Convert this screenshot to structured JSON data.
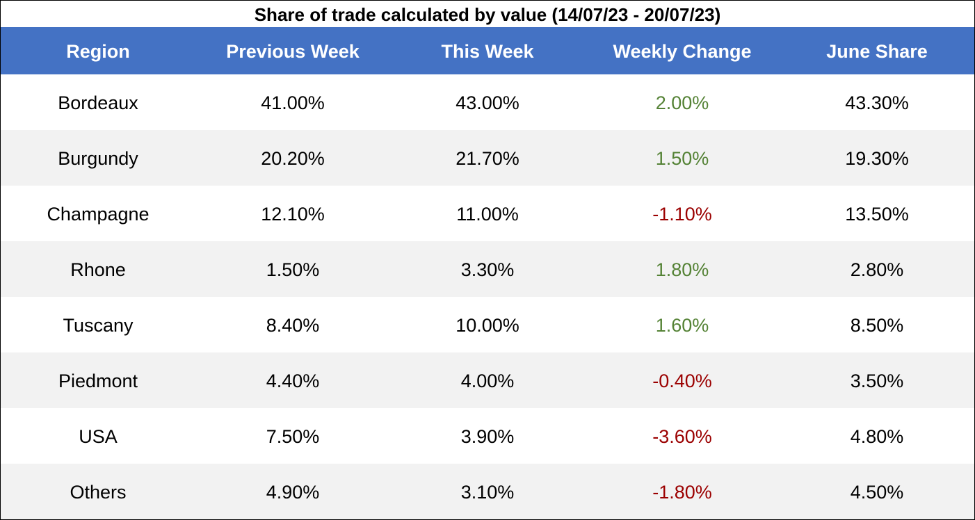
{
  "chart_data": {
    "type": "table",
    "title": "Share of trade calculated by value (14/07/23 - 20/07/23)",
    "columns": [
      "Region",
      "Previous Week",
      "This Week",
      "Weekly Change",
      "June Share"
    ],
    "rows": [
      [
        "Bordeaux",
        "41.00%",
        "43.00%",
        "2.00%",
        "43.30%"
      ],
      [
        "Burgundy",
        "20.20%",
        "21.70%",
        "1.50%",
        "19.30%"
      ],
      [
        "Champagne",
        "12.10%",
        "11.00%",
        "-1.10%",
        "13.50%"
      ],
      [
        "Rhone",
        "1.50%",
        "3.30%",
        "1.80%",
        "2.80%"
      ],
      [
        "Tuscany",
        "8.40%",
        "10.00%",
        "1.60%",
        "8.50%"
      ],
      [
        "Piedmont",
        "4.40%",
        "4.00%",
        "-0.40%",
        "3.50%"
      ],
      [
        "USA",
        "7.50%",
        "3.90%",
        "-3.60%",
        "4.80%"
      ],
      [
        "Others",
        "4.90%",
        "3.10%",
        "-1.80%",
        "4.50%"
      ]
    ]
  },
  "colors": {
    "header_background": "#4472c4",
    "header_text": "#ffffff",
    "band_background": "#f2f2f2",
    "positive_change": "#548235",
    "negative_change": "#9b0000"
  }
}
